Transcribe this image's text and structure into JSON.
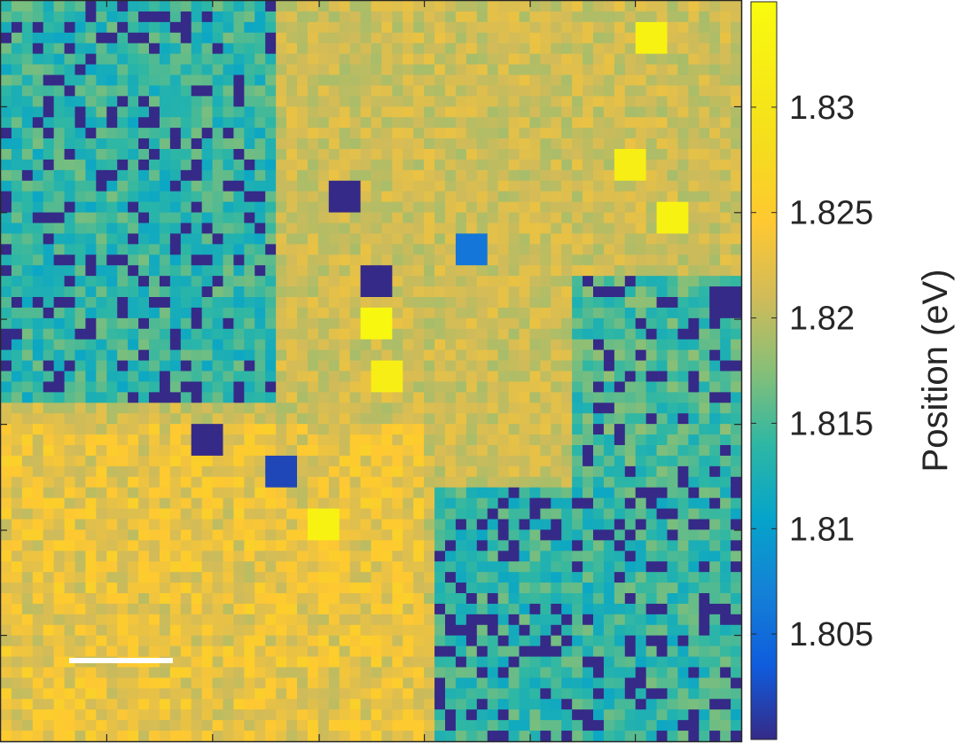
{
  "chart_data": {
    "type": "heatmap",
    "title": "",
    "xlabel": "",
    "ylabel": "",
    "grid": false,
    "colormap": "parula",
    "value_range": [
      1.8,
      1.835
    ],
    "background_value": 1.821,
    "colorbar": {
      "label": "Position (eV)",
      "ticks": [
        1.805,
        1.81,
        1.815,
        1.82,
        1.825,
        1.83
      ],
      "tick_labels": [
        "1.805",
        "1.81",
        "1.815",
        "1.82",
        "1.825",
        "1.83"
      ]
    },
    "grid_size": [
      70,
      70
    ],
    "regions": [
      {
        "name": "noisy-cluster-upper-left",
        "col_range": [
          0,
          26
        ],
        "row_range": [
          0,
          38
        ],
        "mean": 1.814,
        "low_fraction": 0.18
      },
      {
        "name": "noisy-cluster-right",
        "col_range": [
          54,
          70
        ],
        "row_range": [
          26,
          50
        ],
        "mean": 1.815,
        "low_fraction": 0.16
      },
      {
        "name": "noisy-cluster-lower-right",
        "col_range": [
          41,
          70
        ],
        "row_range": [
          46,
          70
        ],
        "mean": 1.814,
        "low_fraction": 0.2
      },
      {
        "name": "warm-band-lower-left",
        "col_range": [
          0,
          40
        ],
        "row_range": [
          40,
          70
        ],
        "mean": 1.823,
        "low_fraction": 0.0
      }
    ],
    "spots": [
      {
        "row": 3,
        "col": 61,
        "value": 1.833
      },
      {
        "row": 15,
        "col": 59,
        "value": 1.832
      },
      {
        "row": 18,
        "col": 32,
        "value": 1.8
      },
      {
        "row": 20,
        "col": 63,
        "value": 1.833
      },
      {
        "row": 23,
        "col": 44,
        "value": 1.806
      },
      {
        "row": 26,
        "col": 35,
        "value": 1.8
      },
      {
        "row": 28,
        "col": 68,
        "value": 1.8
      },
      {
        "row": 30,
        "col": 35,
        "value": 1.834
      },
      {
        "row": 35,
        "col": 36,
        "value": 1.832
      },
      {
        "row": 41,
        "col": 19,
        "value": 1.8
      },
      {
        "row": 44,
        "col": 26,
        "value": 1.802
      },
      {
        "row": 49,
        "col": 30,
        "value": 1.833
      }
    ],
    "scale_bar": {
      "length_fraction": 0.14,
      "color": "#ffffff"
    }
  }
}
